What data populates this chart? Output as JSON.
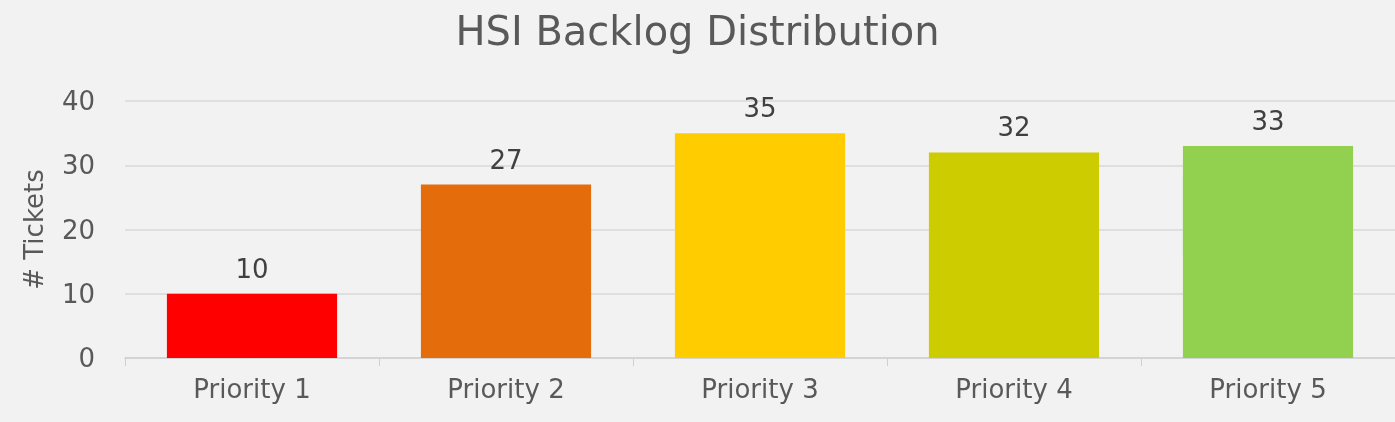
{
  "chart_data": {
    "type": "bar",
    "title": "HSI Backlog Distribution",
    "ylabel": "# Tickets",
    "categories": [
      "Priority 1",
      "Priority 2",
      "Priority 3",
      "Priority 4",
      "Priority 5"
    ],
    "values": [
      10,
      27,
      35,
      32,
      33
    ],
    "colors": [
      "#ff0000",
      "#e46c0a",
      "#ffcc00",
      "#cccc00",
      "#92d050"
    ],
    "ylim": [
      0,
      40
    ],
    "yticks": [
      0,
      10,
      20,
      30,
      40
    ],
    "grid": "y",
    "data_labels": true
  }
}
